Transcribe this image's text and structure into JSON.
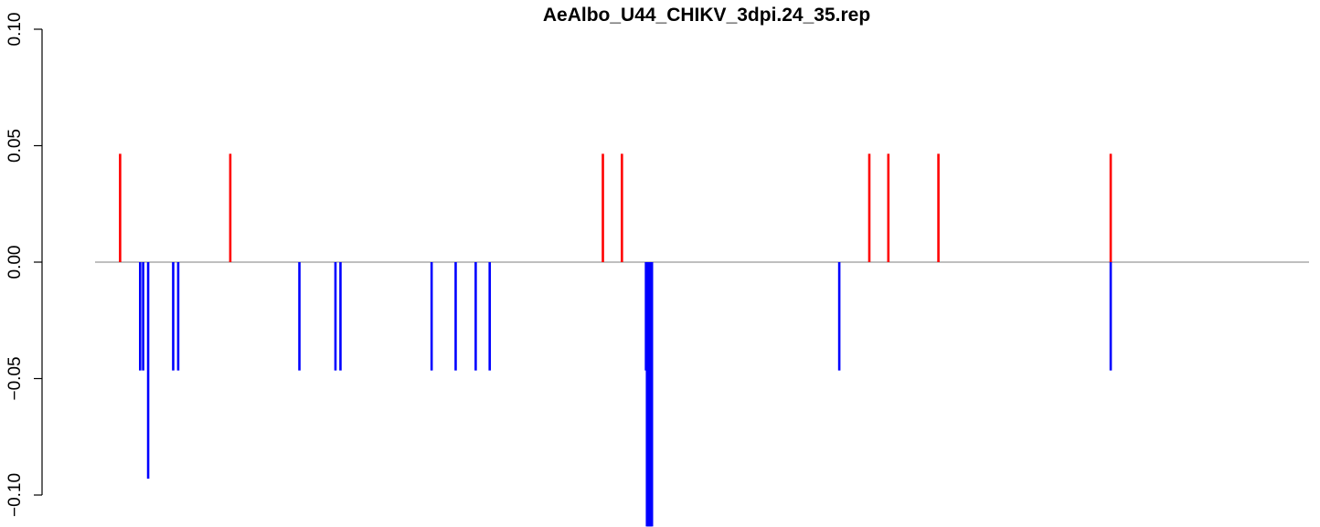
{
  "chart_data": {
    "type": "bar",
    "title": "AeAlbo_U44_CHIKV_3dpi.24_35.rep",
    "xlabel": "",
    "ylabel": "",
    "x_axis_visible": false,
    "ylim": [
      -0.1135,
      0.1
    ],
    "y_ticks": [
      -0.1,
      -0.05,
      0.0,
      0.05,
      0.1
    ],
    "y_tick_labels": [
      "−0.10",
      "−0.05",
      "0.00",
      "0.05",
      "0.10"
    ],
    "baseline": 0.0,
    "grid": false,
    "legend": "none",
    "series": [
      {
        "color": "#ff0000",
        "x": [
          25,
          135,
          507,
          526,
          773,
          792,
          842,
          1014
        ],
        "values": [
          0.0465,
          0.0465,
          0.0465,
          0.0465,
          0.0465,
          0.0465,
          0.0465,
          0.0465
        ]
      },
      {
        "color": "#0000ff",
        "x": [
          45,
          48,
          53,
          78,
          83,
          204,
          240,
          245,
          336,
          360,
          380,
          394,
          550,
          551,
          552,
          553,
          554,
          555,
          556,
          743,
          1014
        ],
        "values": [
          -0.0465,
          -0.0465,
          -0.093,
          -0.0465,
          -0.0465,
          -0.0465,
          -0.0465,
          -0.0465,
          -0.0465,
          -0.0465,
          -0.0465,
          -0.0465,
          -0.0465,
          -0.1135,
          -0.1135,
          -0.1135,
          -0.1135,
          -0.1135,
          -0.1135,
          -0.0465,
          -0.0465
        ]
      }
    ],
    "axis_color": "#000000",
    "baseline_color": "#999999"
  }
}
